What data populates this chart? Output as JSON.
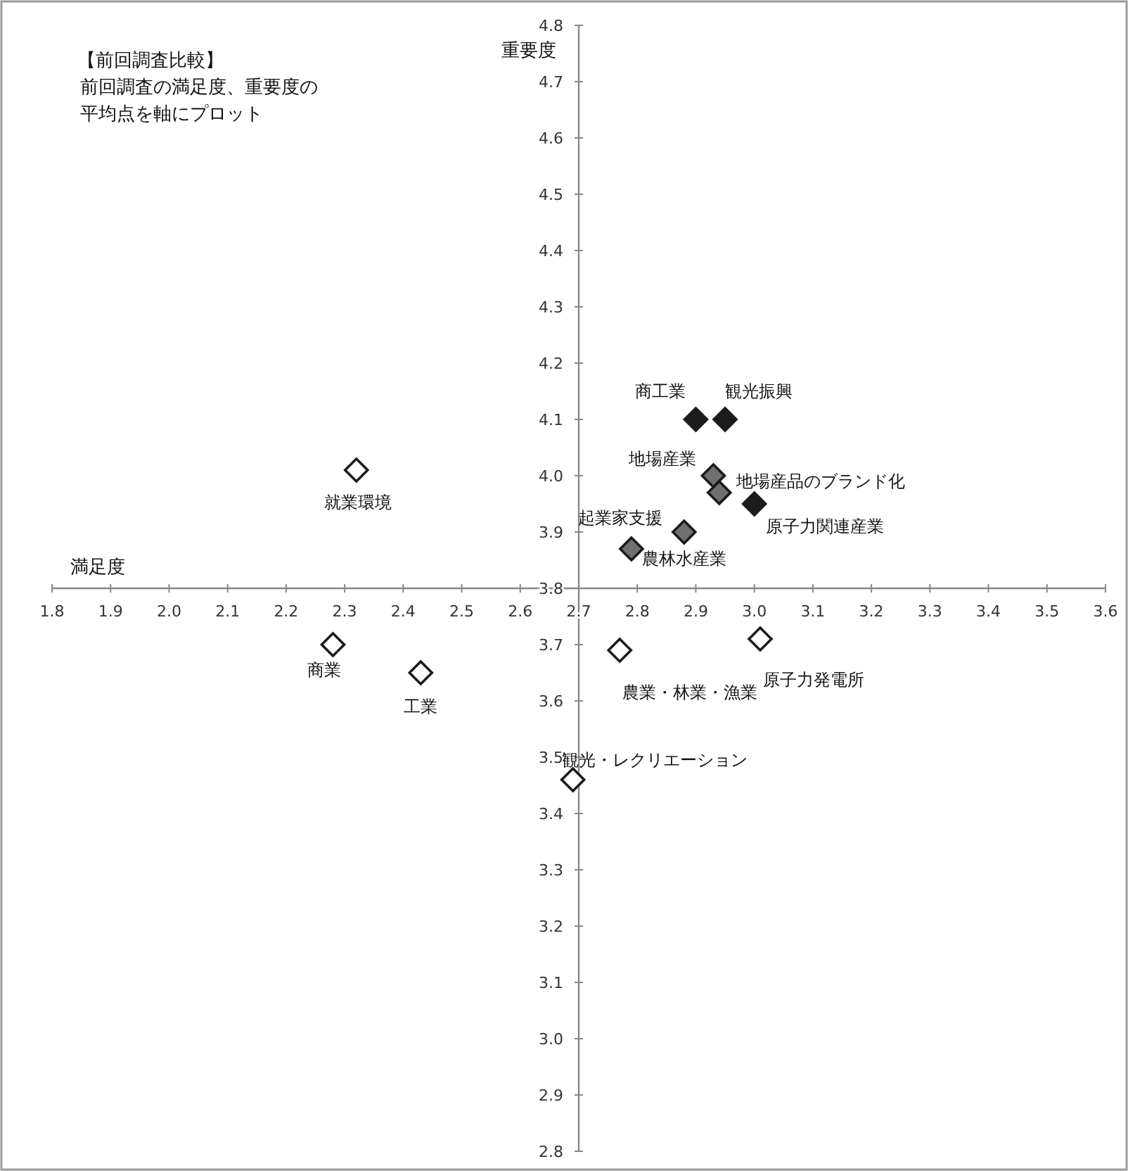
{
  "chart_data": {
    "type": "scatter",
    "title": "【前回調査比較】",
    "subtitle": "前回調査の満足度、重要度の平均点を軸にプロット",
    "xlabel": "満足度",
    "ylabel": "重要度",
    "xlim": [
      1.8,
      3.6
    ],
    "ylim": [
      2.8,
      4.8
    ],
    "xticks": [
      {
        "value": 1.8,
        "label": "1.8"
      },
      {
        "value": 1.9,
        "label": "1.9"
      },
      {
        "value": 2.0,
        "label": "2.0"
      },
      {
        "value": 2.1,
        "label": "2.1"
      },
      {
        "value": 2.2,
        "label": "2.2"
      },
      {
        "value": 2.3,
        "label": "2.3"
      },
      {
        "value": 2.4,
        "label": "2.4"
      },
      {
        "value": 2.5,
        "label": "2.5"
      },
      {
        "value": 2.6,
        "label": "2.6"
      },
      {
        "value": 2.7,
        "label": "2.7"
      },
      {
        "value": 2.8,
        "label": "2.8"
      },
      {
        "value": 2.9,
        "label": "2.9"
      },
      {
        "value": 3.0,
        "label": "3.0"
      },
      {
        "value": 3.1,
        "label": "3.1"
      },
      {
        "value": 3.2,
        "label": "3.2"
      },
      {
        "value": 3.3,
        "label": "3.3"
      },
      {
        "value": 3.4,
        "label": "3.4"
      },
      {
        "value": 3.5,
        "label": "3.5"
      },
      {
        "value": 3.6,
        "label": "3.6"
      }
    ],
    "yticks": [
      {
        "value": 2.8,
        "label": "2.8"
      },
      {
        "value": 2.9,
        "label": "2.9"
      },
      {
        "value": 3.0,
        "label": "3.0"
      },
      {
        "value": 3.1,
        "label": "3.1"
      },
      {
        "value": 3.2,
        "label": "3.2"
      },
      {
        "value": 3.3,
        "label": "3.3"
      },
      {
        "value": 3.4,
        "label": "3.4"
      },
      {
        "value": 3.5,
        "label": "3.5"
      },
      {
        "value": 3.6,
        "label": "3.6"
      },
      {
        "value": 3.7,
        "label": "3.7"
      },
      {
        "value": 3.8,
        "label": "3.8"
      },
      {
        "value": 3.9,
        "label": "3.9"
      },
      {
        "value": 4.0,
        "label": "4.0"
      },
      {
        "value": 4.1,
        "label": "4.1"
      },
      {
        "value": 4.2,
        "label": "4.2"
      },
      {
        "value": 4.3,
        "label": "4.3"
      },
      {
        "value": 4.4,
        "label": "4.4"
      },
      {
        "value": 4.5,
        "label": "4.5"
      },
      {
        "value": 4.6,
        "label": "4.6"
      },
      {
        "value": 4.7,
        "label": "4.7"
      },
      {
        "value": 4.8,
        "label": "4.8"
      }
    ],
    "marker": "diamond",
    "grid": false,
    "series": [
      {
        "color": "#1c1c1c",
        "x": [
          2.9,
          2.95,
          3.0
        ],
        "values": [
          4.1,
          4.1,
          3.95
        ]
      },
      {
        "color": "#707070",
        "x": [
          2.93,
          2.94,
          2.79,
          2.88
        ],
        "values": [
          4.0,
          3.97,
          3.87,
          3.9
        ]
      },
      {
        "color": "#ffffff",
        "x": [
          2.32,
          2.28,
          2.43,
          2.77,
          3.01,
          2.69
        ],
        "values": [
          4.01,
          3.7,
          3.65,
          3.69,
          3.71,
          3.46
        ]
      }
    ],
    "annotations": [
      {
        "text": "商工業",
        "x": 2.9,
        "y": 4.1
      },
      {
        "text": "観光振興",
        "x": 2.95,
        "y": 4.1
      },
      {
        "text": "地場産業",
        "x": 2.93,
        "y": 4.0
      },
      {
        "text": "地場産品のブランド化",
        "x": 2.94,
        "y": 3.97
      },
      {
        "text": "原子力関連産業",
        "x": 3.0,
        "y": 3.95
      },
      {
        "text": "起業家支援",
        "x": 2.79,
        "y": 3.87
      },
      {
        "text": "農林水産業",
        "x": 2.88,
        "y": 3.9
      },
      {
        "text": "就業環境",
        "x": 2.32,
        "y": 4.01
      },
      {
        "text": "商業",
        "x": 2.28,
        "y": 3.7
      },
      {
        "text": "工業",
        "x": 2.43,
        "y": 3.65
      },
      {
        "text": "農業・林業・漁業",
        "x": 2.77,
        "y": 3.69
      },
      {
        "text": "原子力発電所",
        "x": 3.01,
        "y": 3.71
      },
      {
        "text": "観光・レクリエーション",
        "x": 2.69,
        "y": 3.46
      }
    ]
  }
}
